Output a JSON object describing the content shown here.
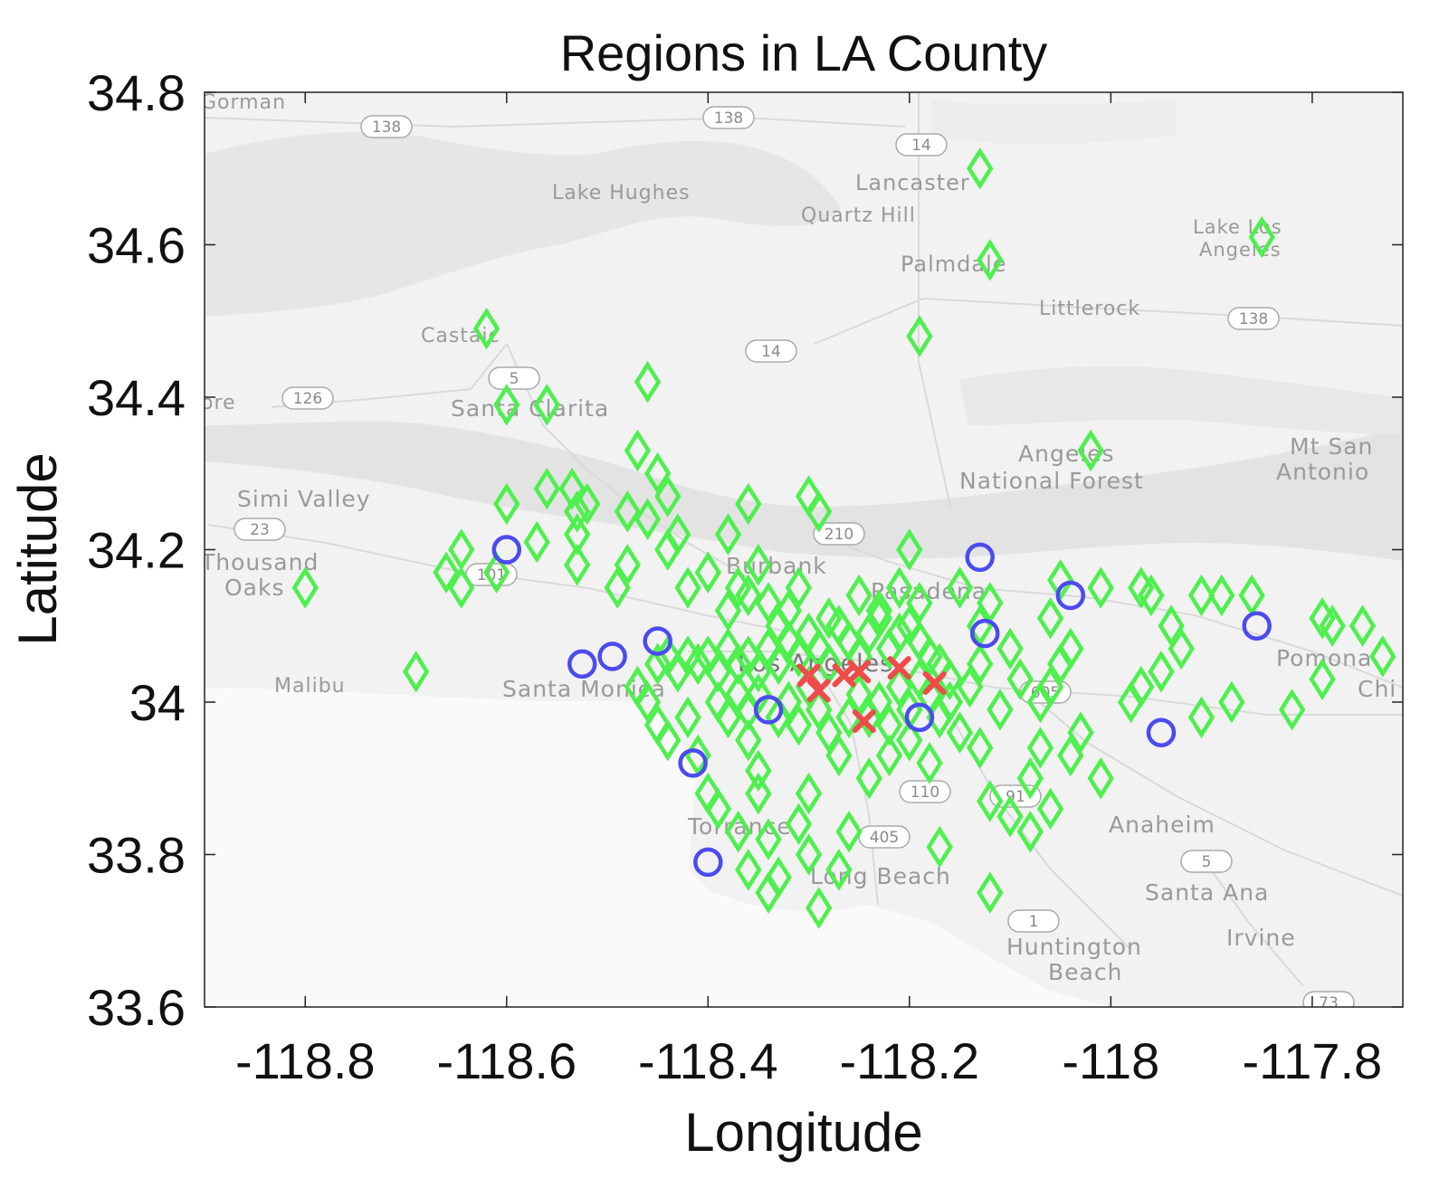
{
  "chart_data": {
    "type": "scatter",
    "title": "Regions in LA County",
    "xlabel": "Longitude",
    "ylabel": "Latitude",
    "xlim": [
      -118.9,
      -117.71
    ],
    "ylim": [
      33.6,
      34.8
    ],
    "xticks": [
      -118.8,
      -118.6,
      -118.4,
      -118.2,
      -118,
      -117.8
    ],
    "xtick_labels": [
      "-118.8",
      "-118.6",
      "-118.4",
      "-118.2",
      "-118",
      "-117.8"
    ],
    "yticks": [
      33.6,
      33.8,
      34,
      34.2,
      34.4,
      34.6,
      34.8
    ],
    "ytick_labels": [
      "33.6",
      "33.8",
      "34",
      "34.2",
      "34.4",
      "34.6",
      "34.8"
    ],
    "grid": false,
    "legend": "none",
    "background": "grayscale street map of Los Angeles County",
    "map_labels": [
      "Gorman",
      "Lake Hughes",
      "Lancaster",
      "Quartz Hill",
      "Palmdale",
      "Littlerock",
      "Lake Los",
      "Angeles",
      "Castaic",
      "Santa Clarita",
      "Angeles",
      "National Forest",
      "Mt San",
      "Antonio",
      "Simi Valley",
      "Thousand",
      "Oaks",
      "Burbank",
      "Pasadena",
      "Los Angeles",
      "Malibu",
      "Santa Monica",
      "Pomona",
      "Chi",
      "Torrance",
      "Long Beach",
      "Anaheim",
      "Santa Ana",
      "Irvine",
      "Huntington",
      "Beach",
      "ore"
    ],
    "road_shields": [
      "138",
      "138",
      "14",
      "14",
      "138",
      "126",
      "5",
      "23",
      "101",
      "210",
      "605",
      "110",
      "91",
      "405",
      "5",
      "1",
      "73"
    ],
    "series": [
      {
        "marker": "diamond",
        "color": "#4df04d",
        "points": [
          [
            -118.8,
            34.15
          ],
          [
            -118.69,
            34.04
          ],
          [
            -118.62,
            34.49
          ],
          [
            -118.6,
            34.39
          ],
          [
            -118.56,
            34.39
          ],
          [
            -118.46,
            34.42
          ],
          [
            -118.13,
            34.7
          ],
          [
            -118.12,
            34.58
          ],
          [
            -118.19,
            34.48
          ],
          [
            -117.85,
            34.61
          ],
          [
            -118.02,
            34.33
          ],
          [
            -118.66,
            34.17
          ],
          [
            -118.645,
            34.2
          ],
          [
            -118.645,
            34.15
          ],
          [
            -118.61,
            34.17
          ],
          [
            -118.6,
            34.26
          ],
          [
            -118.57,
            34.21
          ],
          [
            -118.56,
            34.28
          ],
          [
            -118.535,
            34.28
          ],
          [
            -118.53,
            34.22
          ],
          [
            -118.53,
            34.25
          ],
          [
            -118.52,
            34.26
          ],
          [
            -118.53,
            34.18
          ],
          [
            -118.49,
            34.15
          ],
          [
            -118.48,
            34.18
          ],
          [
            -118.48,
            34.25
          ],
          [
            -118.47,
            34.33
          ],
          [
            -118.46,
            34.24
          ],
          [
            -118.45,
            34.3
          ],
          [
            -118.44,
            34.27
          ],
          [
            -118.43,
            34.22
          ],
          [
            -118.44,
            34.2
          ],
          [
            -118.42,
            34.15
          ],
          [
            -118.4,
            34.17
          ],
          [
            -118.38,
            34.22
          ],
          [
            -118.36,
            34.26
          ],
          [
            -118.35,
            34.18
          ],
          [
            -118.3,
            34.27
          ],
          [
            -118.29,
            34.25
          ],
          [
            -118.2,
            34.2
          ],
          [
            -118.05,
            34.16
          ],
          [
            -118.01,
            34.15
          ],
          [
            -117.97,
            34.15
          ],
          [
            -117.96,
            34.14
          ],
          [
            -117.91,
            34.14
          ],
          [
            -117.89,
            34.14
          ],
          [
            -117.86,
            34.14
          ],
          [
            -117.79,
            34.11
          ],
          [
            -117.75,
            34.1
          ],
          [
            -117.73,
            34.06
          ],
          [
            -117.78,
            34.1
          ],
          [
            -118.12,
            34.13
          ],
          [
            -118.13,
            34.1
          ],
          [
            -118.1,
            34.07
          ],
          [
            -118.06,
            34.11
          ],
          [
            -118.04,
            34.07
          ],
          [
            -118.05,
            34.05
          ],
          [
            -117.94,
            34.1
          ],
          [
            -117.93,
            34.07
          ],
          [
            -117.95,
            34.04
          ],
          [
            -117.97,
            34.02
          ],
          [
            -117.98,
            34.0
          ],
          [
            -117.88,
            34.0
          ],
          [
            -117.82,
            33.99
          ],
          [
            -117.79,
            34.03
          ],
          [
            -117.91,
            33.98
          ],
          [
            -118.47,
            34.02
          ],
          [
            -118.46,
            34.0
          ],
          [
            -118.45,
            33.97
          ],
          [
            -118.44,
            33.95
          ],
          [
            -118.42,
            33.98
          ],
          [
            -118.41,
            33.93
          ],
          [
            -118.4,
            33.88
          ],
          [
            -118.39,
            33.86
          ],
          [
            -118.37,
            33.83
          ],
          [
            -118.36,
            33.95
          ],
          [
            -118.35,
            33.91
          ],
          [
            -118.35,
            33.88
          ],
          [
            -118.34,
            33.82
          ],
          [
            -118.33,
            33.77
          ],
          [
            -118.34,
            33.75
          ],
          [
            -118.36,
            33.78
          ],
          [
            -118.3,
            33.88
          ],
          [
            -118.31,
            33.84
          ],
          [
            -118.3,
            33.8
          ],
          [
            -118.29,
            33.73
          ],
          [
            -118.27,
            33.78
          ],
          [
            -118.26,
            33.83
          ],
          [
            -118.24,
            33.9
          ],
          [
            -118.22,
            33.93
          ],
          [
            -118.2,
            33.95
          ],
          [
            -118.18,
            33.92
          ],
          [
            -118.17,
            33.81
          ],
          [
            -118.15,
            33.96
          ],
          [
            -118.13,
            33.94
          ],
          [
            -118.11,
            33.99
          ],
          [
            -118.12,
            33.87
          ],
          [
            -118.1,
            33.85
          ],
          [
            -118.12,
            33.75
          ],
          [
            -118.07,
            33.94
          ],
          [
            -118.08,
            33.9
          ],
          [
            -118.08,
            33.83
          ],
          [
            -118.06,
            33.86
          ],
          [
            -118.04,
            33.93
          ],
          [
            -118.03,
            33.96
          ],
          [
            -118.01,
            33.9
          ],
          [
            -118.45,
            34.05
          ],
          [
            -118.44,
            34.06
          ],
          [
            -118.43,
            34.04
          ],
          [
            -118.42,
            34.06
          ],
          [
            -118.41,
            34.05
          ],
          [
            -118.4,
            34.06
          ],
          [
            -118.39,
            34.04
          ],
          [
            -118.38,
            34.07
          ],
          [
            -118.37,
            34.05
          ],
          [
            -118.36,
            34.06
          ],
          [
            -118.35,
            34.04
          ],
          [
            -118.34,
            34.07
          ],
          [
            -118.33,
            34.05
          ],
          [
            -118.32,
            34.08
          ],
          [
            -118.31,
            34.06
          ],
          [
            -118.3,
            34.09
          ],
          [
            -118.29,
            34.07
          ],
          [
            -118.28,
            34.05
          ],
          [
            -118.27,
            34.1
          ],
          [
            -118.26,
            34.08
          ],
          [
            -118.25,
            34.06
          ],
          [
            -118.24,
            34.09
          ],
          [
            -118.23,
            34.11
          ],
          [
            -118.22,
            34.07
          ],
          [
            -118.21,
            34.09
          ],
          [
            -118.2,
            34.1
          ],
          [
            -118.19,
            34.08
          ],
          [
            -118.18,
            34.06
          ],
          [
            -118.17,
            34.05
          ],
          [
            -118.16,
            34.03
          ],
          [
            -118.38,
            34.12
          ],
          [
            -118.37,
            34.15
          ],
          [
            -118.36,
            34.14
          ],
          [
            -118.34,
            34.13
          ],
          [
            -118.33,
            34.1
          ],
          [
            -118.32,
            34.12
          ],
          [
            -118.31,
            34.15
          ],
          [
            -118.28,
            34.11
          ],
          [
            -118.25,
            34.14
          ],
          [
            -118.23,
            34.12
          ],
          [
            -118.21,
            34.15
          ],
          [
            -118.19,
            34.13
          ],
          [
            -118.15,
            34.15
          ],
          [
            -118.39,
            34.0
          ],
          [
            -118.38,
            33.98
          ],
          [
            -118.37,
            34.01
          ],
          [
            -118.36,
            33.99
          ],
          [
            -118.35,
            34.01
          ],
          [
            -118.33,
            33.98
          ],
          [
            -118.32,
            34.0
          ],
          [
            -118.31,
            33.97
          ],
          [
            -118.3,
            34.02
          ],
          [
            -118.29,
            33.99
          ],
          [
            -118.28,
            33.96
          ],
          [
            -118.27,
            33.93
          ],
          [
            -118.26,
            33.98
          ],
          [
            -118.25,
            34.01
          ],
          [
            -118.24,
            33.98
          ],
          [
            -118.23,
            34.0
          ],
          [
            -118.22,
            33.97
          ],
          [
            -118.21,
            34.02
          ],
          [
            -118.2,
            33.99
          ],
          [
            -118.19,
            34.03
          ],
          [
            -118.18,
            34.01
          ],
          [
            -118.17,
            33.98
          ],
          [
            -118.16,
            34.0
          ],
          [
            -118.14,
            34.02
          ],
          [
            -118.13,
            34.05
          ],
          [
            -118.09,
            34.03
          ],
          [
            -118.07,
            34.0
          ],
          [
            -118.06,
            34.02
          ]
        ]
      },
      {
        "marker": "circle",
        "color": "#4b4bf0",
        "points": [
          [
            -118.6,
            34.2
          ],
          [
            -118.525,
            34.05
          ],
          [
            -118.495,
            34.06
          ],
          [
            -118.45,
            34.08
          ],
          [
            -118.415,
            33.92
          ],
          [
            -118.4,
            33.79
          ],
          [
            -118.34,
            33.99
          ],
          [
            -118.19,
            33.98
          ],
          [
            -118.13,
            34.19
          ],
          [
            -118.125,
            34.09
          ],
          [
            -118.04,
            34.14
          ],
          [
            -117.95,
            33.96
          ],
          [
            -117.855,
            34.1
          ]
        ]
      },
      {
        "marker": "x",
        "color": "#f04a4a",
        "points": [
          [
            -118.3,
            34.035
          ],
          [
            -118.29,
            34.015
          ],
          [
            -118.265,
            34.035
          ],
          [
            -118.25,
            34.04
          ],
          [
            -118.21,
            34.045
          ],
          [
            -118.175,
            34.025
          ],
          [
            -118.245,
            33.975
          ]
        ]
      }
    ]
  }
}
